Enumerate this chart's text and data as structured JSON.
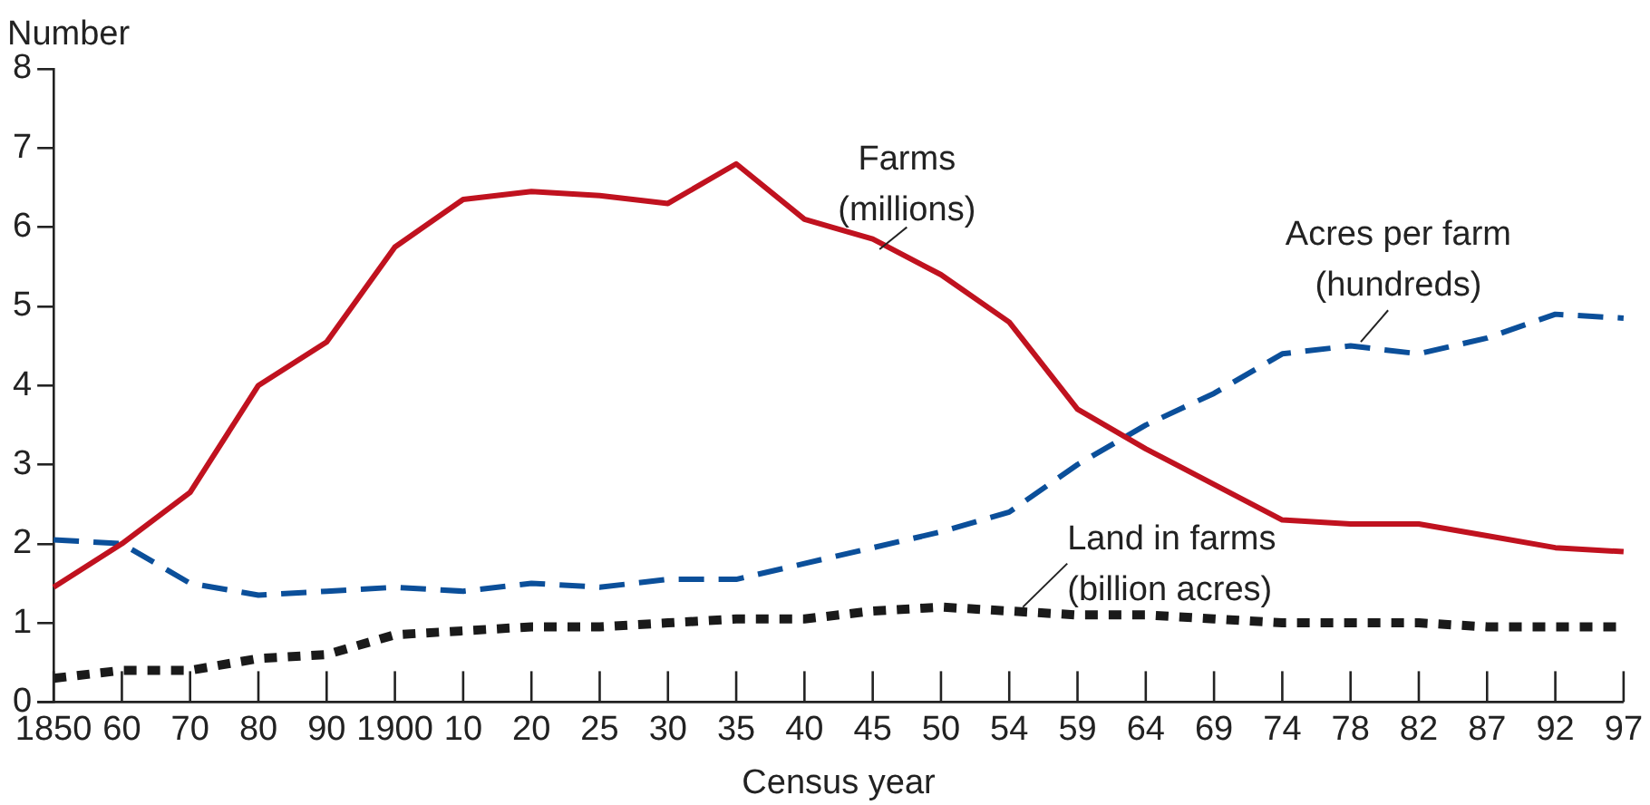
{
  "chart_data": {
    "type": "line",
    "xlabel": "Census year",
    "ylabel": "Number",
    "categories": [
      "1850",
      "60",
      "70",
      "80",
      "90",
      "1900",
      "10",
      "20",
      "25",
      "30",
      "35",
      "40",
      "45",
      "50",
      "54",
      "59",
      "64",
      "69",
      "74",
      "78",
      "82",
      "87",
      "92",
      "97"
    ],
    "ylim": [
      0,
      8
    ],
    "yticks": [
      0,
      1,
      2,
      3,
      4,
      5,
      6,
      7,
      8
    ],
    "grid": false,
    "marker": "none",
    "series": [
      {
        "name": "Farms (millions)",
        "color": "#c0121f",
        "line_style": "solid",
        "values": [
          1.45,
          2.0,
          2.65,
          4.0,
          4.55,
          5.75,
          6.35,
          6.45,
          6.4,
          6.3,
          6.8,
          6.1,
          5.85,
          5.4,
          4.8,
          3.7,
          3.2,
          2.75,
          2.3,
          2.25,
          2.25,
          2.1,
          1.95,
          1.9
        ]
      },
      {
        "name": "Acres per farm (hundreds)",
        "color": "#0b4f9a",
        "line_style": "dashed",
        "values": [
          2.05,
          2.0,
          1.5,
          1.35,
          1.4,
          1.45,
          1.4,
          1.5,
          1.45,
          1.55,
          1.55,
          1.75,
          1.95,
          2.15,
          2.4,
          3.0,
          3.5,
          3.9,
          4.4,
          4.5,
          4.4,
          4.6,
          4.9,
          4.85
        ]
      },
      {
        "name": "Land in farms (billion acres)",
        "color": "#1a1a1a",
        "line_style": "dotted",
        "values": [
          0.3,
          0.4,
          0.4,
          0.55,
          0.6,
          0.85,
          0.9,
          0.95,
          0.95,
          1.0,
          1.05,
          1.05,
          1.15,
          1.2,
          1.15,
          1.1,
          1.1,
          1.05,
          1.0,
          1.0,
          1.0,
          0.95,
          0.95,
          0.95
        ]
      }
    ]
  }
}
